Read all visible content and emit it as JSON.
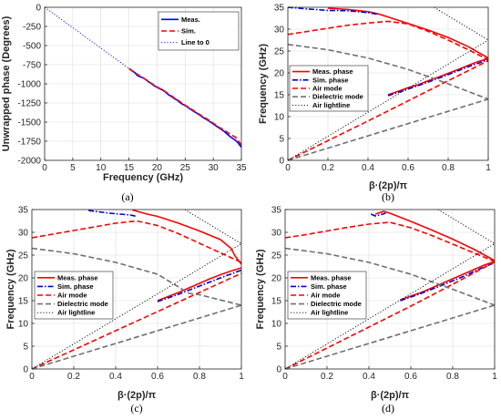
{
  "chart_data": [
    {
      "panel": "a",
      "type": "line",
      "caption": "(a)",
      "xlabel": "Frequency (GHz)",
      "ylabel": "Unwrapped phase (Degrees)",
      "xlim": [
        0,
        35
      ],
      "ylim": [
        -2000,
        0
      ],
      "xticks": [
        0,
        5,
        10,
        15,
        20,
        25,
        30,
        35
      ],
      "yticks": [
        0,
        -250,
        -500,
        -750,
        -1000,
        -1250,
        -1500,
        -1750,
        -2000
      ],
      "legend_position": "top-right",
      "series": [
        {
          "name": "Meas.",
          "color": "#0000ff",
          "style": "solid",
          "x": [
            15,
            15.5,
            16,
            16.5,
            17,
            17.5,
            18,
            18.5,
            19,
            19.5,
            20,
            20.5,
            21,
            21.5,
            22,
            22.5,
            23,
            23.5,
            24,
            24.5,
            25,
            25.5,
            26,
            26.5,
            27,
            27.5,
            28,
            28.5,
            29,
            29.5,
            30,
            30.5,
            31,
            31.5,
            32,
            32.5,
            33,
            33.5,
            34,
            34.5,
            35
          ],
          "y": [
            -800,
            -830,
            -850,
            -890,
            -910,
            -920,
            -945,
            -975,
            -1000,
            -1025,
            -1045,
            -1065,
            -1080,
            -1110,
            -1140,
            -1165,
            -1190,
            -1210,
            -1240,
            -1265,
            -1285,
            -1310,
            -1335,
            -1360,
            -1380,
            -1405,
            -1430,
            -1455,
            -1475,
            -1500,
            -1525,
            -1550,
            -1575,
            -1600,
            -1625,
            -1660,
            -1690,
            -1715,
            -1740,
            -1780,
            -1830
          ]
        },
        {
          "name": "Sim.",
          "color": "#ff0000",
          "style": "dashed",
          "x": [
            15,
            16,
            17,
            18,
            19,
            20,
            21,
            22,
            23,
            24,
            25,
            26,
            27,
            28,
            29,
            30,
            31,
            32,
            33,
            34,
            35
          ],
          "y": [
            -800,
            -850,
            -900,
            -945,
            -995,
            -1040,
            -1080,
            -1130,
            -1180,
            -1230,
            -1280,
            -1325,
            -1375,
            -1420,
            -1465,
            -1515,
            -1565,
            -1610,
            -1660,
            -1700,
            -1800
          ]
        },
        {
          "name": "Line to 0",
          "color": "#0000ff",
          "style": "dotted",
          "x": [
            0,
            15
          ],
          "y": [
            0,
            -800
          ]
        }
      ]
    },
    {
      "panel": "b",
      "type": "line",
      "caption": "(b)",
      "xlabel": "β·(2p)/π",
      "ylabel": "Frequency (GHz)",
      "xlim": [
        0,
        1
      ],
      "ylim": [
        0,
        35
      ],
      "xticks": [
        0,
        0.2,
        0.4,
        0.6,
        0.8,
        1
      ],
      "yticks": [
        0,
        5,
        10,
        15,
        20,
        25,
        30,
        35
      ],
      "legend_position": "center-left",
      "series": [
        {
          "name": "Meas. phase",
          "color": "#ff0000",
          "style": "solid",
          "x": [
            0.5,
            0.55,
            0.6,
            0.65,
            0.7,
            0.75,
            0.8,
            0.85,
            0.9,
            0.95,
            0.98,
            1.0
          ],
          "y": [
            15.0,
            15.8,
            16.6,
            17.3,
            18.2,
            19.0,
            19.9,
            20.8,
            21.7,
            22.6,
            23.0,
            23.2
          ],
          "branch2": {
            "x": [
              0.2,
              0.3,
              0.4,
              0.45,
              0.5,
              0.6,
              0.7,
              0.8,
              0.9,
              1.0
            ],
            "y": [
              34.8,
              34.5,
              34.0,
              33.5,
              32.8,
              31.3,
              29.8,
              28.1,
              26.0,
              23.4
            ]
          }
        },
        {
          "name": "Sim. phase",
          "color": "#0000cc",
          "style": "dashdot",
          "x": [
            0.5,
            0.6,
            0.7,
            0.8,
            0.9,
            1.0
          ],
          "y": [
            14.8,
            16.3,
            17.9,
            19.6,
            21.4,
            23.0
          ],
          "branch2": {
            "x": [
              0.0,
              0.1,
              0.2,
              0.3,
              0.35,
              0.4,
              0.45
            ],
            "y": [
              35.0,
              34.6,
              34.3,
              34.2,
              34.0,
              33.8,
              33.4
            ]
          }
        },
        {
          "name": "Air mode",
          "color": "#ff0000",
          "style": "dashed",
          "x": [
            0,
            0.2,
            0.4,
            0.6,
            0.8,
            1.0
          ],
          "y": [
            0,
            4.5,
            9.0,
            13.6,
            18.2,
            22.8
          ],
          "branch2": {
            "x": [
              0,
              0.1,
              0.2,
              0.3,
              0.4,
              0.5,
              0.6,
              0.7,
              0.8,
              0.9,
              1.0
            ],
            "y": [
              28.8,
              29.5,
              30.2,
              30.9,
              31.4,
              31.8,
              31.2,
              29.5,
              27.5,
              25.3,
              23.0
            ]
          }
        },
        {
          "name": "Dielectric mode",
          "color": "#707070",
          "style": "dashed",
          "x": [
            0,
            0.2,
            0.4,
            0.6,
            0.8,
            1.0
          ],
          "y": [
            0,
            2.8,
            5.6,
            8.4,
            11.2,
            14.0
          ],
          "branch2": {
            "x": [
              0,
              0.2,
              0.4,
              0.6,
              0.8,
              1.0
            ],
            "y": [
              26.5,
              25.3,
              23.4,
              20.8,
              17.5,
              14.0
            ]
          }
        },
        {
          "name": "Air lightline",
          "color": "#000000",
          "style": "dotted",
          "x": [
            0,
            1.0
          ],
          "y": [
            0,
            27.5
          ],
          "branch2": {
            "x": [
              0.73,
              1.0
            ],
            "y": [
              35,
              27.5
            ]
          }
        }
      ]
    },
    {
      "panel": "c",
      "type": "line",
      "caption": "(c)",
      "xlabel": "β·(2p)/π",
      "ylabel": "Frequency (GHz)",
      "xlim": [
        0,
        1
      ],
      "ylim": [
        0,
        35
      ],
      "xticks": [
        0,
        0.2,
        0.4,
        0.6,
        0.8,
        1
      ],
      "yticks": [
        0,
        5,
        10,
        15,
        20,
        25,
        30,
        35
      ],
      "legend_position": "center-left",
      "series": [
        {
          "name": "Meas. phase",
          "color": "#ff0000",
          "style": "solid",
          "x": [
            0.6,
            0.65,
            0.7,
            0.75,
            0.8,
            0.85,
            0.9,
            0.95,
            1.0
          ],
          "y": [
            15.0,
            15.9,
            16.8,
            17.8,
            18.8,
            19.8,
            20.7,
            21.5,
            22.2
          ],
          "branch2": {
            "x": [
              0.48,
              0.55,
              0.6,
              0.7,
              0.8,
              0.9,
              0.95,
              0.97,
              1.0
            ],
            "y": [
              34.9,
              34.0,
              33.5,
              32.0,
              30.3,
              28.4,
              26.5,
              24.8,
              23.0
            ]
          }
        },
        {
          "name": "Sim. phase",
          "color": "#0000cc",
          "style": "dashdot",
          "x": [
            0.6,
            0.7,
            0.8,
            0.9,
            1.0
          ],
          "y": [
            14.8,
            16.4,
            18.2,
            20.0,
            21.7
          ],
          "branch2": {
            "x": [
              0.27,
              0.32,
              0.37,
              0.42,
              0.47,
              0.5
            ],
            "y": [
              34.8,
              34.5,
              34.2,
              34.0,
              33.8,
              33.5
            ]
          }
        },
        {
          "name": "Air mode",
          "color": "#ff0000",
          "style": "dashed",
          "x": [
            0,
            0.2,
            0.4,
            0.6,
            0.8,
            1.0
          ],
          "y": [
            0,
            4.2,
            8.4,
            12.6,
            16.8,
            21.0
          ],
          "branch2": {
            "x": [
              0,
              0.1,
              0.2,
              0.3,
              0.4,
              0.5,
              0.6,
              0.7,
              0.8,
              0.9,
              1.0
            ],
            "y": [
              28.8,
              29.6,
              30.4,
              31.2,
              32.0,
              32.5,
              31.5,
              29.7,
              27.6,
              25.5,
              23.4
            ]
          }
        },
        {
          "name": "Dielectric mode",
          "color": "#707070",
          "style": "dashed",
          "x": [
            0,
            0.2,
            0.4,
            0.6,
            0.7,
            0.75,
            0.8,
            1.0
          ],
          "y": [
            0,
            2.8,
            5.6,
            8.4,
            9.8,
            10.5,
            11.2,
            14.0
          ],
          "branch2": {
            "x": [
              0,
              0.2,
              0.4,
              0.6,
              0.7,
              0.75,
              0.8,
              1.0
            ],
            "y": [
              26.5,
              25.3,
              23.4,
              20.8,
              18.0,
              16.6,
              16.3,
              14.0
            ]
          }
        },
        {
          "name": "Air lightline",
          "color": "#000000",
          "style": "dotted",
          "x": [
            0,
            1.0
          ],
          "y": [
            0,
            27.5
          ],
          "branch2": {
            "x": [
              0.73,
              1.0
            ],
            "y": [
              35,
              27.5
            ]
          }
        }
      ]
    },
    {
      "panel": "d",
      "type": "line",
      "caption": "(d)",
      "xlabel": "β·(2p)/π",
      "ylabel": "Frequency (GHz)",
      "xlim": [
        0,
        1
      ],
      "ylim": [
        0,
        35
      ],
      "xticks": [
        0,
        0.2,
        0.4,
        0.6,
        0.8,
        1
      ],
      "yticks": [
        0,
        5,
        10,
        15,
        20,
        25,
        30,
        35
      ],
      "legend_position": "center-left",
      "series": [
        {
          "name": "Meas. phase",
          "color": "#ff0000",
          "style": "solid",
          "x": [
            0.55,
            0.6,
            0.65,
            0.7,
            0.75,
            0.8,
            0.85,
            0.9,
            0.95,
            1.0
          ],
          "y": [
            15.2,
            16.0,
            16.8,
            17.8,
            18.8,
            19.8,
            20.8,
            21.8,
            22.8,
            23.6
          ],
          "branch2": {
            "x": [
              0.43,
              0.47,
              0.5,
              0.6,
              0.7,
              0.8,
              0.9,
              1.0
            ],
            "y": [
              34.0,
              34.6,
              34.2,
              32.4,
              30.5,
              28.5,
              26.3,
              23.8
            ]
          }
        },
        {
          "name": "Sim. phase",
          "color": "#0000cc",
          "style": "dashdot",
          "x": [
            0.55,
            0.65,
            0.75,
            0.85,
            0.95,
            1.0
          ],
          "y": [
            15.0,
            16.6,
            18.4,
            20.3,
            22.4,
            23.3
          ],
          "branch2": {
            "x": [
              0.41,
              0.43,
              0.45,
              0.48
            ],
            "y": [
              34.0,
              33.6,
              33.8,
              34.2
            ]
          }
        },
        {
          "name": "Air mode",
          "color": "#ff0000",
          "style": "dashed",
          "x": [
            0,
            0.2,
            0.4,
            0.6,
            0.8,
            1.0
          ],
          "y": [
            0,
            4.6,
            9.2,
            13.8,
            18.6,
            23.5
          ],
          "branch2": {
            "x": [
              0,
              0.1,
              0.2,
              0.3,
              0.4,
              0.5,
              0.6,
              0.7,
              0.8,
              0.9,
              1.0
            ],
            "y": [
              28.8,
              29.5,
              30.3,
              31.1,
              31.8,
              32.2,
              31.0,
              29.3,
              27.4,
              25.5,
              23.6
            ]
          }
        },
        {
          "name": "Dielectric mode",
          "color": "#707070",
          "style": "dashed",
          "x": [
            0,
            0.2,
            0.4,
            0.6,
            0.8,
            1.0
          ],
          "y": [
            0,
            2.8,
            5.6,
            8.4,
            11.2,
            14.0
          ],
          "branch2": {
            "x": [
              0,
              0.2,
              0.4,
              0.6,
              0.8,
              1.0
            ],
            "y": [
              26.5,
              25.3,
              23.4,
              20.8,
              17.5,
              14.0
            ]
          }
        },
        {
          "name": "Air lightline",
          "color": "#000000",
          "style": "dotted",
          "x": [
            0,
            1.0
          ],
          "y": [
            0,
            27.5
          ],
          "branch2": {
            "x": [
              0.73,
              1.0
            ],
            "y": [
              35,
              27.5
            ]
          }
        }
      ]
    }
  ]
}
